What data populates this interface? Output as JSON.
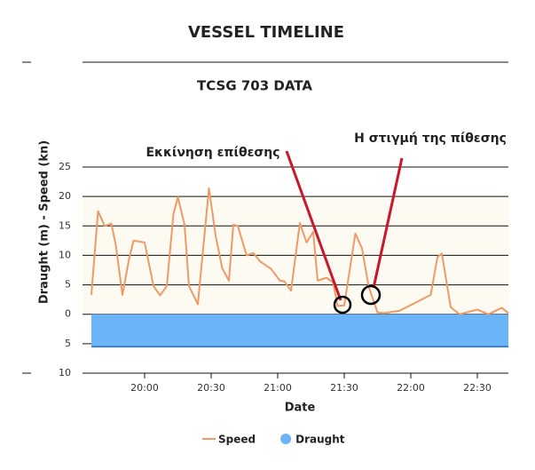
{
  "chart_data": {
    "type": "line",
    "title": "VESSEL TIMELINE",
    "subtitle": "TCSG 703 DATA",
    "y_label": "Draught (m) - Speed (kn)",
    "x_label": "Date",
    "annotations": [
      "Εκκίνηση επίθεσης",
      "Η στιγμή της πίθεσης"
    ],
    "xlim": [
      "19:32",
      "22:44"
    ],
    "xticks": [
      "20:00",
      "20:30",
      "21:00",
      "21:30",
      "22:00",
      "22:30"
    ],
    "ylim": [
      -10,
      25
    ],
    "yticks": [
      {
        "value": -10,
        "label": "10"
      },
      {
        "value": -5,
        "label": "5"
      },
      0,
      5,
      10,
      15,
      20,
      25
    ],
    "grid": true,
    "plot_band": {
      "from": 0,
      "to": 20,
      "color": "#fdfaf1"
    },
    "legend": "bottom",
    "series": [
      {
        "name": "Speed",
        "color": "#ef9a66",
        "kind": "line",
        "x": [
          "19:36",
          "19:39",
          "19:42",
          "19:45",
          "19:47",
          "19:50",
          "19:53",
          "19:55",
          "20:00",
          "20:04",
          "20:07",
          "20:10",
          "20:13",
          "20:15",
          "20:18",
          "20:20",
          "20:24",
          "20:29",
          "20:32",
          "20:35",
          "20:38",
          "20:40",
          "20:42",
          "20:46",
          "20:49",
          "20:52",
          "20:57",
          "21:01",
          "21:03",
          "21:06",
          "21:10",
          "21:13",
          "21:16",
          "21:18",
          "21:22",
          "21:25",
          "21:27",
          "21:30",
          "21:35",
          "21:38",
          "21:41",
          "21:45",
          "21:48",
          "21:55",
          "22:09",
          "22:12",
          "22:14",
          "22:18",
          "22:22",
          "22:30",
          "22:35",
          "22:41",
          "22:44"
        ],
        "values": [
          3.3,
          17.5,
          15,
          15.4,
          11.8,
          3.3,
          9.4,
          12.5,
          12.2,
          4.8,
          3.2,
          4.8,
          17,
          19.9,
          15.2,
          4.8,
          1.7,
          21.4,
          13.4,
          7.8,
          5.7,
          15.2,
          15,
          10,
          10.4,
          9,
          7.7,
          5.7,
          5.6,
          4,
          15.5,
          12.2,
          14,
          5.7,
          6.2,
          5.4,
          1.4,
          1.5,
          13.7,
          11.2,
          4.7,
          0.3,
          0.2,
          0.6,
          3.3,
          9.7,
          10.3,
          1.2,
          0,
          0.8,
          0,
          1.1,
          0.2
        ]
      },
      {
        "name": "Draught",
        "color": "#6ab4f7",
        "kind": "area",
        "x": [
          "19:36",
          "22:44"
        ],
        "values": [
          -5.5,
          -5.5
        ]
      }
    ]
  }
}
